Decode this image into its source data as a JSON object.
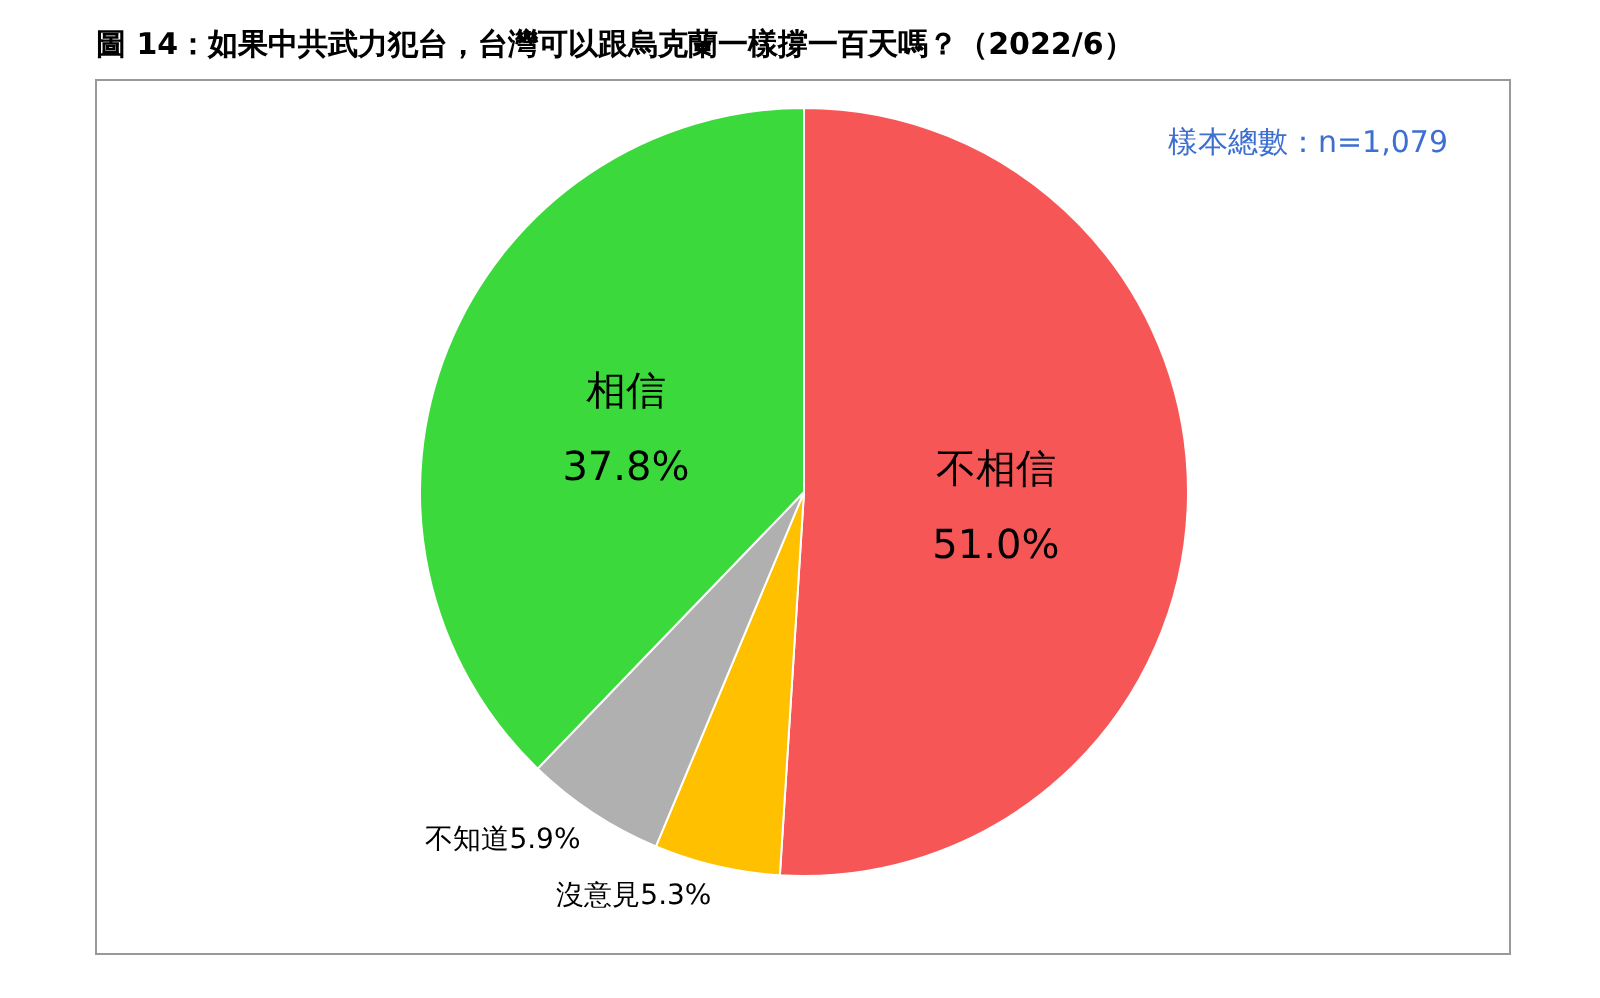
{
  "chart_data": {
    "type": "pie",
    "title": "圖 14：如果中共武力犯台，台灣可以跟烏克蘭一樣撐一百天嗎？（2022/6）",
    "categories": [
      "不相信",
      "沒意見",
      "不知道",
      "相信"
    ],
    "values": [
      51.0,
      5.3,
      5.9,
      37.8
    ],
    "colors": [
      "#f75656",
      "#ffc000",
      "#b0b0b0",
      "#3bd93b"
    ],
    "value_labels": [
      "51.0%",
      "5.3%",
      "5.9%",
      "37.8%"
    ],
    "annotations": [
      "樣本總數：n=1,079"
    ]
  }
}
